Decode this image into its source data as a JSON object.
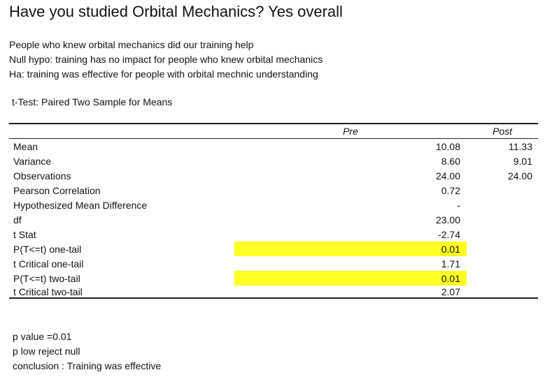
{
  "title": "Have you studied Orbital Mechanics? Yes overall",
  "notes": [
    "People who knew orbital mechanics did our training help",
    "Null hypo: training has no impact for people who knew orbital mechanics",
    "Ha: training was effective for people with orbital mechnic understanding"
  ],
  "test_title": "t-Test: Paired Two Sample for Means",
  "table": {
    "headers": [
      "",
      "Pre",
      "Post"
    ],
    "rows": [
      {
        "label": "Mean",
        "pre": "10.08",
        "post": "11.33",
        "highlight": false
      },
      {
        "label": "Variance",
        "pre": "8.60",
        "post": "9.01",
        "highlight": false
      },
      {
        "label": "Observations",
        "pre": "24.00",
        "post": "24.00",
        "highlight": false
      },
      {
        "label": "Pearson Correlation",
        "pre": "0.72",
        "post": "",
        "highlight": false
      },
      {
        "label": "Hypothesized Mean Difference",
        "pre": "-",
        "post": "",
        "highlight": false
      },
      {
        "label": "df",
        "pre": "23.00",
        "post": "",
        "highlight": false
      },
      {
        "label": "t Stat",
        "pre": "-2.74",
        "post": "",
        "highlight": false
      },
      {
        "label": "P(T<=t) one-tail",
        "pre": "0.01",
        "post": "",
        "highlight": true
      },
      {
        "label": "t Critical one-tail",
        "pre": "1.71",
        "post": "",
        "highlight": false
      },
      {
        "label": "P(T<=t) two-tail",
        "pre": "0.01",
        "post": "",
        "highlight": true
      },
      {
        "label": "t Critical two-tail",
        "pre": "2.07",
        "post": "",
        "highlight": false
      }
    ],
    "highlight_color": "#ffff22"
  },
  "conclusion": [
    "p value =0.01",
    "p low reject null",
    "conclusion : Training was effective"
  ]
}
